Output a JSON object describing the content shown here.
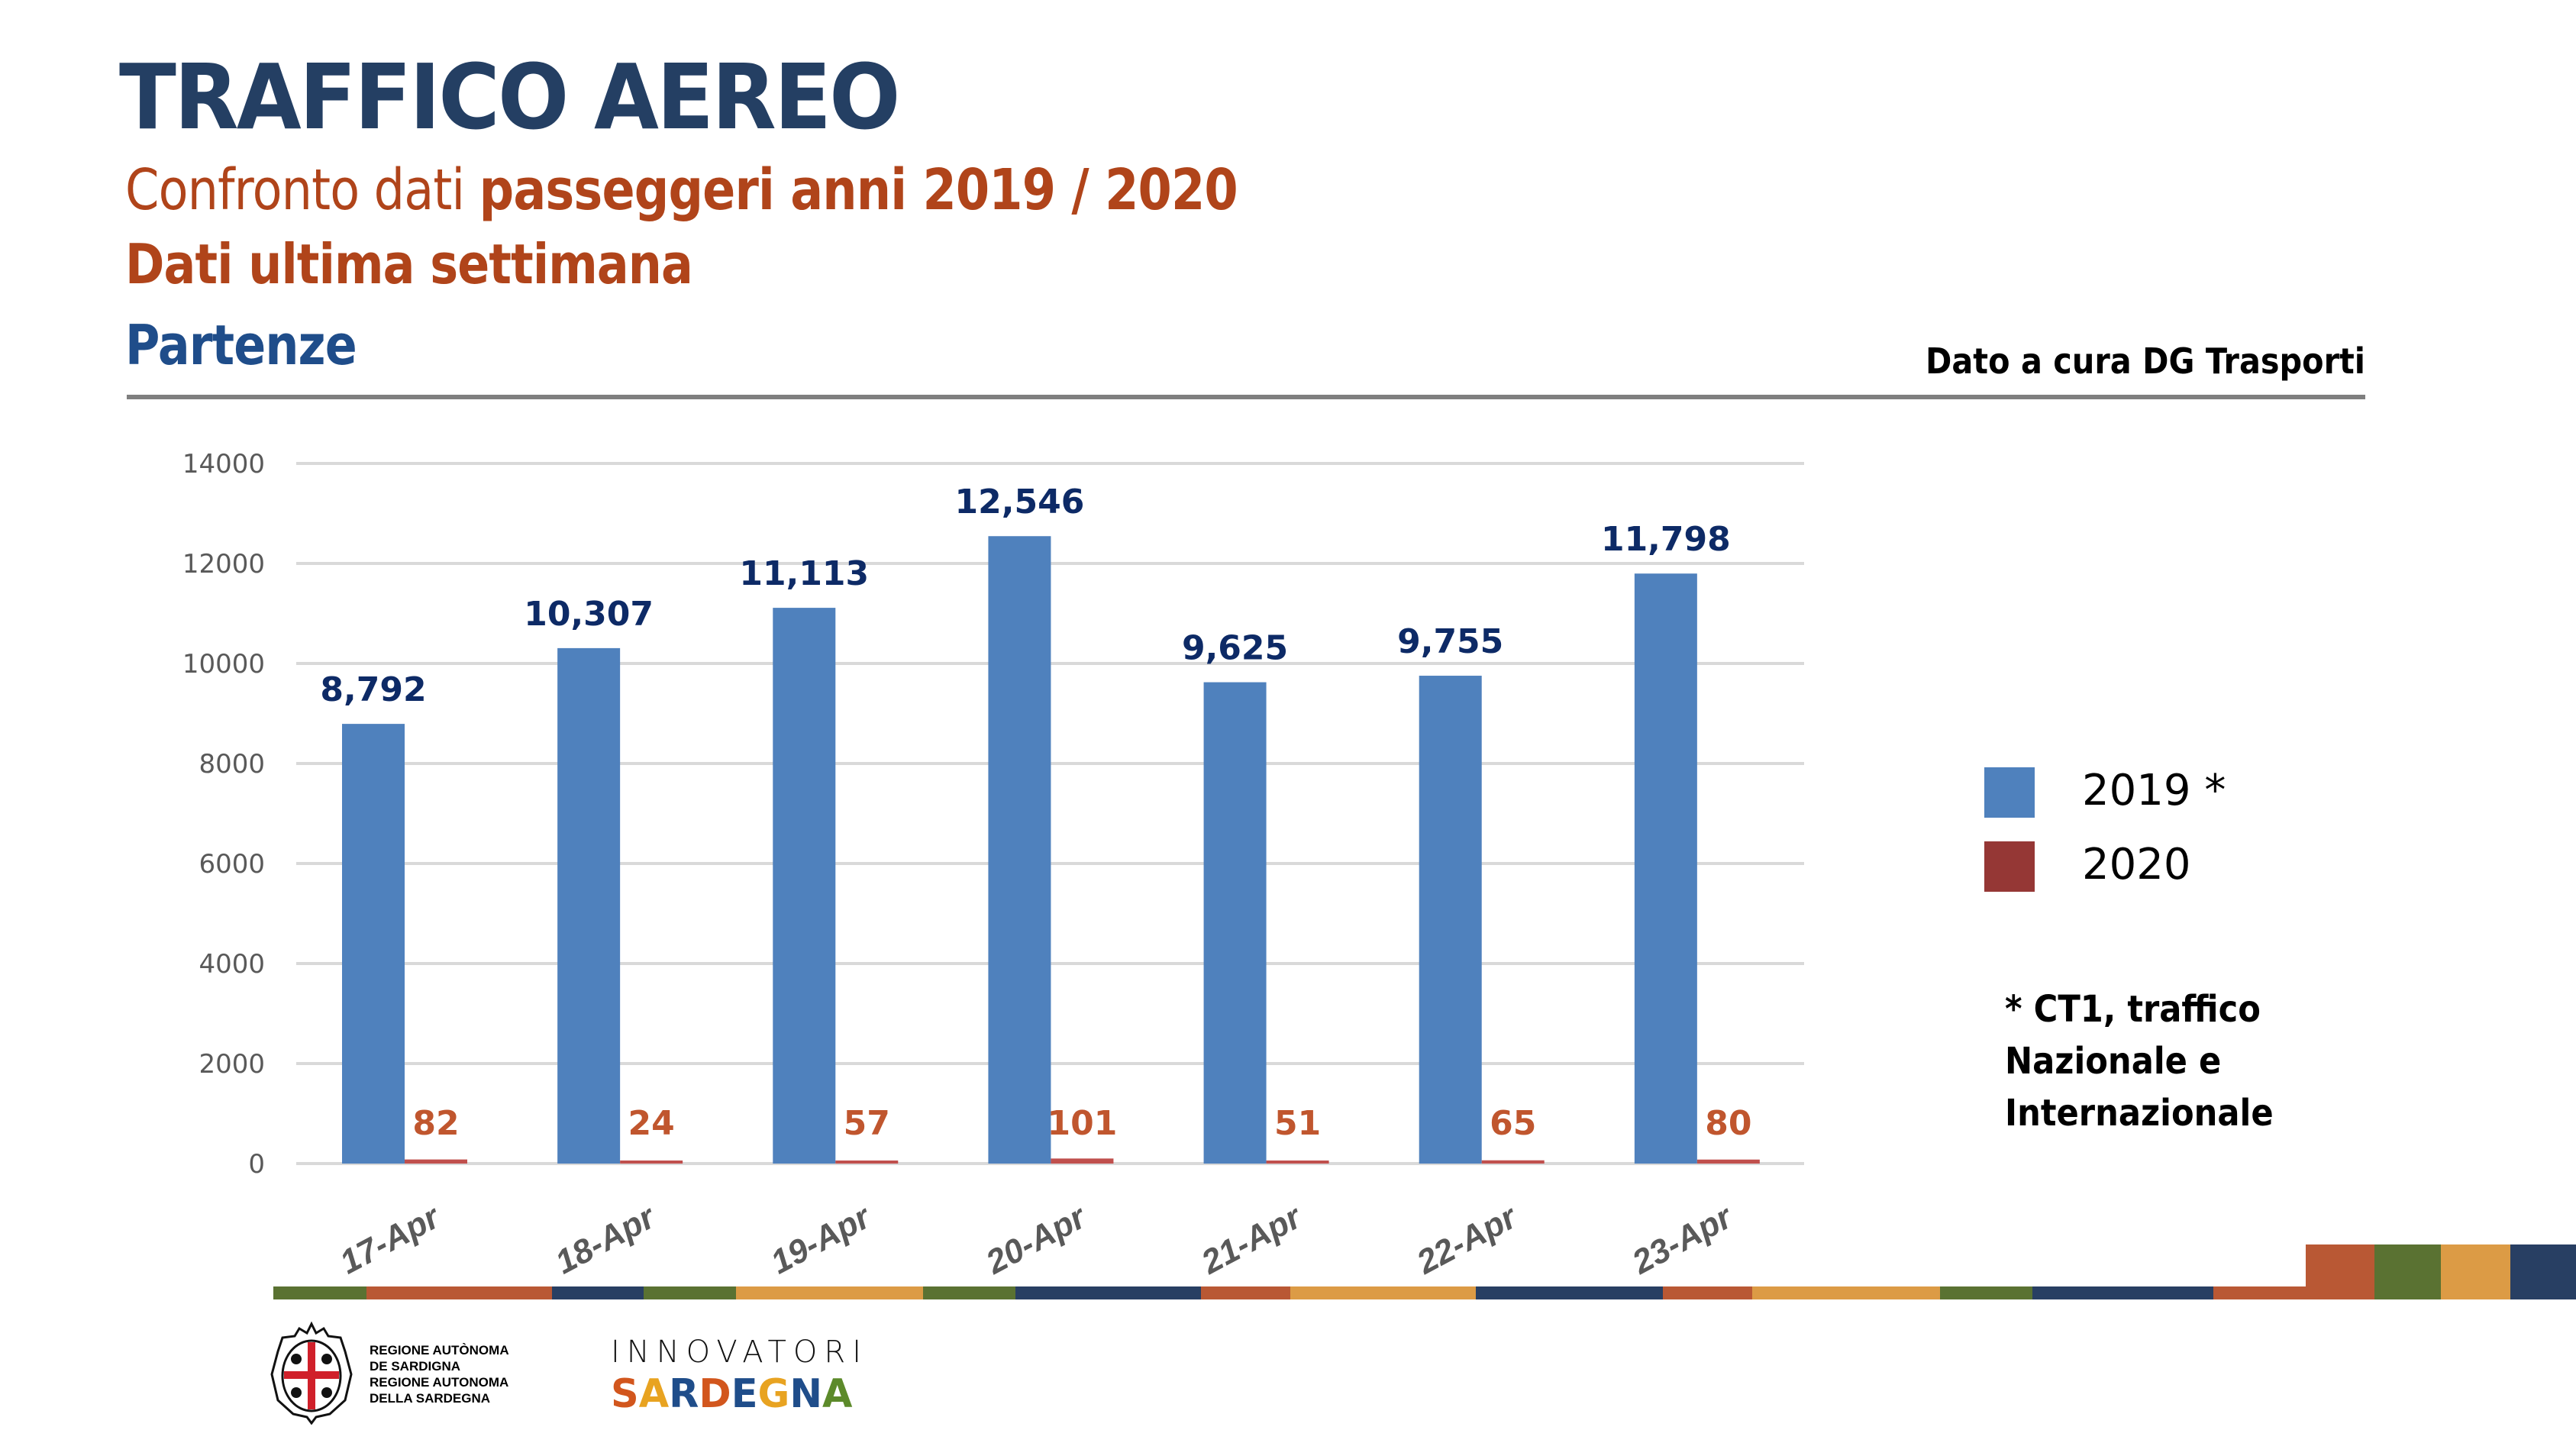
{
  "header": {
    "title": "TRAFFICO AEREO",
    "subtitle_light": "Confronto dati ",
    "subtitle_bold": "passeggeri anni 2019 / 2020",
    "period": "Dati ultima settimana",
    "direction": "Partenze",
    "source": "Dato a cura DG Trasporti"
  },
  "colors": {
    "title": "#243f63",
    "accent": "#b0441a",
    "series_2019": "#4f81bd",
    "series_2020": "#c0504d",
    "legend_2020": "#953735",
    "label_2019": "#0d2a66",
    "label_2020": "#c0562e"
  },
  "chart_data": {
    "type": "bar",
    "title": "",
    "xlabel": "",
    "ylabel": "",
    "categories": [
      "17-Apr",
      "18-Apr",
      "19-Apr",
      "20-Apr",
      "21-Apr",
      "22-Apr",
      "23-Apr"
    ],
    "series": [
      {
        "name": "2019 *",
        "values": [
          8792,
          10307,
          11113,
          12546,
          9625,
          9755,
          11798
        ],
        "labels": [
          "8,792",
          "10,307",
          "11,113",
          "12,546",
          "9,625",
          "9,755",
          "11,798"
        ]
      },
      {
        "name": "2020",
        "values": [
          82,
          24,
          57,
          101,
          51,
          65,
          80
        ],
        "labels": [
          "82",
          "24",
          "57",
          "101",
          "51",
          "65",
          "80"
        ]
      }
    ],
    "ylim": [
      0,
      14000
    ],
    "yticks": [
      "0",
      "2000",
      "4000",
      "6000",
      "8000",
      "10000",
      "12000",
      "14000"
    ],
    "grid": true,
    "legend_position": "right"
  },
  "note": {
    "lines": [
      "* CT1, traffico",
      "Nazionale e",
      "Internazionale"
    ]
  },
  "footer": {
    "stripe_colors": [
      "#5a7232",
      "#b95834",
      "#283f63",
      "#5a7232",
      "#dc9b45",
      "#5a7232",
      "#283f63",
      "#b95834",
      "#dc9b45",
      "#283f63",
      "#b95834",
      "#dc9b45",
      "#5a7232",
      "#283f63",
      "#b95834"
    ],
    "block_colors": [
      "#b95834",
      "#5a7232",
      "#dc9b45",
      "#283f63"
    ],
    "region_logo": {
      "lines": [
        "REGIONE AUTÒNOMA",
        "DE SARDIGNA",
        "REGIONE AUTONOMA",
        "DELLA SARDEGNA"
      ]
    },
    "innovatori_logo": {
      "top": "INNOVATORI",
      "bottom": "SARDEGNA",
      "letter_colors": [
        "#d2561d",
        "#e8a321",
        "#1f4d8a",
        "#d2561d",
        "#1f4d8a",
        "#e8a321",
        "#1f4d8a",
        "#5c8a2a"
      ]
    }
  }
}
